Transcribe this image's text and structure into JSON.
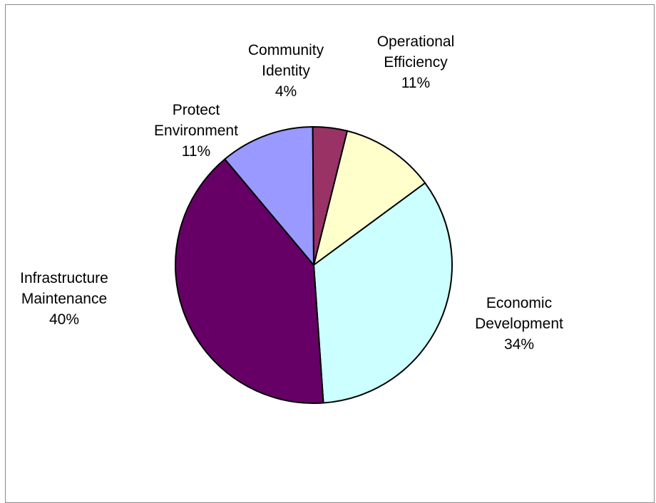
{
  "chart_data": {
    "type": "pie",
    "title": "",
    "slices": [
      {
        "label_lines": [
          "Operational",
          "Efficiency"
        ],
        "value": 11,
        "pct_label": "11%",
        "color": "#FFFFCC"
      },
      {
        "label_lines": [
          "Economic",
          "Development"
        ],
        "value": 34,
        "pct_label": "34%",
        "color": "#CCFFFF"
      },
      {
        "label_lines": [
          "Infrastructure",
          "Maintenance"
        ],
        "value": 40,
        "pct_label": "40%",
        "color": "#660066"
      },
      {
        "label_lines": [
          "Protect",
          "Environment"
        ],
        "value": 11,
        "pct_label": "11%",
        "color": "#9999FF"
      },
      {
        "label_lines": [
          "Community",
          "Identity"
        ],
        "value": 4,
        "pct_label": "4%",
        "color": "#993366"
      }
    ],
    "start_angle_deg": 14,
    "direction": "clockwise",
    "legend": "none",
    "data_labels": "outside"
  }
}
